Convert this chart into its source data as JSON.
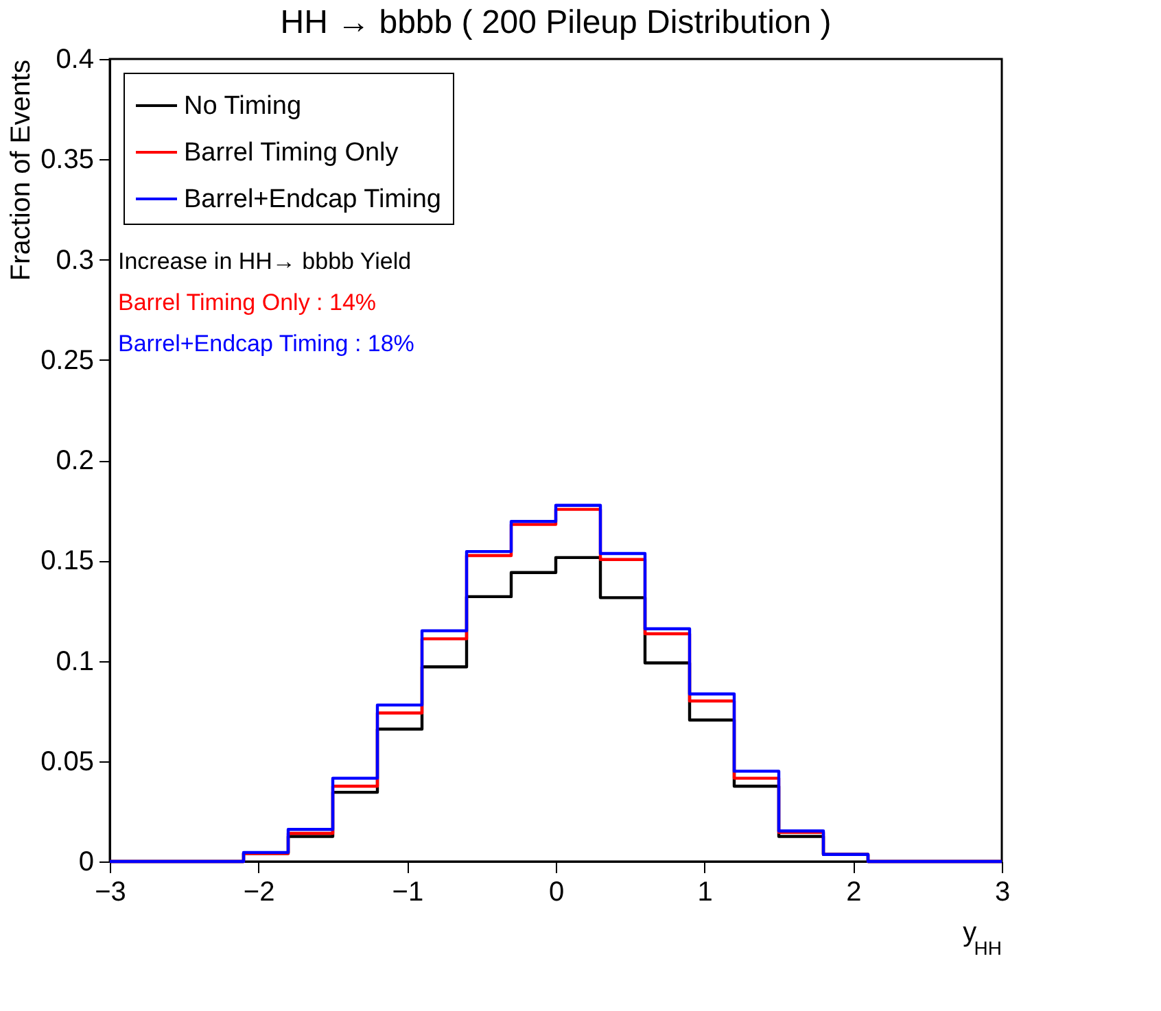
{
  "chart_data": {
    "type": "histogram",
    "title": "HH → bbbb ( 200 Pileup Distribution )",
    "xlabel": "y$_{HH}$",
    "ylabel": "Fraction of Events",
    "bins": [
      -3,
      -2.7,
      -2.4,
      -2.1,
      -1.8,
      -1.5,
      -1.2,
      -0.9,
      -0.6,
      -0.3,
      0,
      0.3,
      0.6,
      0.9,
      1.2,
      1.5,
      1.8,
      2.1,
      2.4,
      2.7,
      3
    ],
    "series": [
      {
        "name": "No Timing",
        "color": "#000000",
        "values": [
          0,
          0,
          0,
          0.004,
          0.0125,
          0.0345,
          0.066,
          0.097,
          0.132,
          0.144,
          0.1515,
          0.1315,
          0.099,
          0.0705,
          0.0375,
          0.0125,
          0.0035,
          0,
          0,
          0
        ]
      },
      {
        "name": "Barrel Timing Only",
        "color": "#ff0000",
        "values": [
          0,
          0,
          0,
          0.004,
          0.014,
          0.0375,
          0.074,
          0.111,
          0.1525,
          0.168,
          0.1755,
          0.1505,
          0.1135,
          0.08,
          0.0415,
          0.0145,
          0.0035,
          0,
          0,
          0
        ]
      },
      {
        "name": "Barrel+Endcap Timing",
        "color": "#0000ff",
        "values": [
          0,
          0,
          0,
          0.0045,
          0.016,
          0.0415,
          0.078,
          0.115,
          0.1545,
          0.1695,
          0.1775,
          0.1535,
          0.116,
          0.0835,
          0.045,
          0.0152,
          0.0035,
          0,
          0,
          0
        ]
      }
    ],
    "xlim": [
      -3,
      3
    ],
    "xticks": [
      -3,
      -2,
      -1,
      0,
      1,
      2,
      3
    ],
    "ylim": [
      0,
      0.4
    ],
    "yticks": [
      0,
      0.05,
      0.1,
      0.15,
      0.2,
      0.25,
      0.3,
      0.35,
      0.4
    ],
    "annotations": [
      "Increase in HH→ bbbb Yield",
      "Barrel Timing Only : 14%",
      "Barrel+Endcap Timing : 18%"
    ],
    "legend": "top left",
    "grid": false
  }
}
